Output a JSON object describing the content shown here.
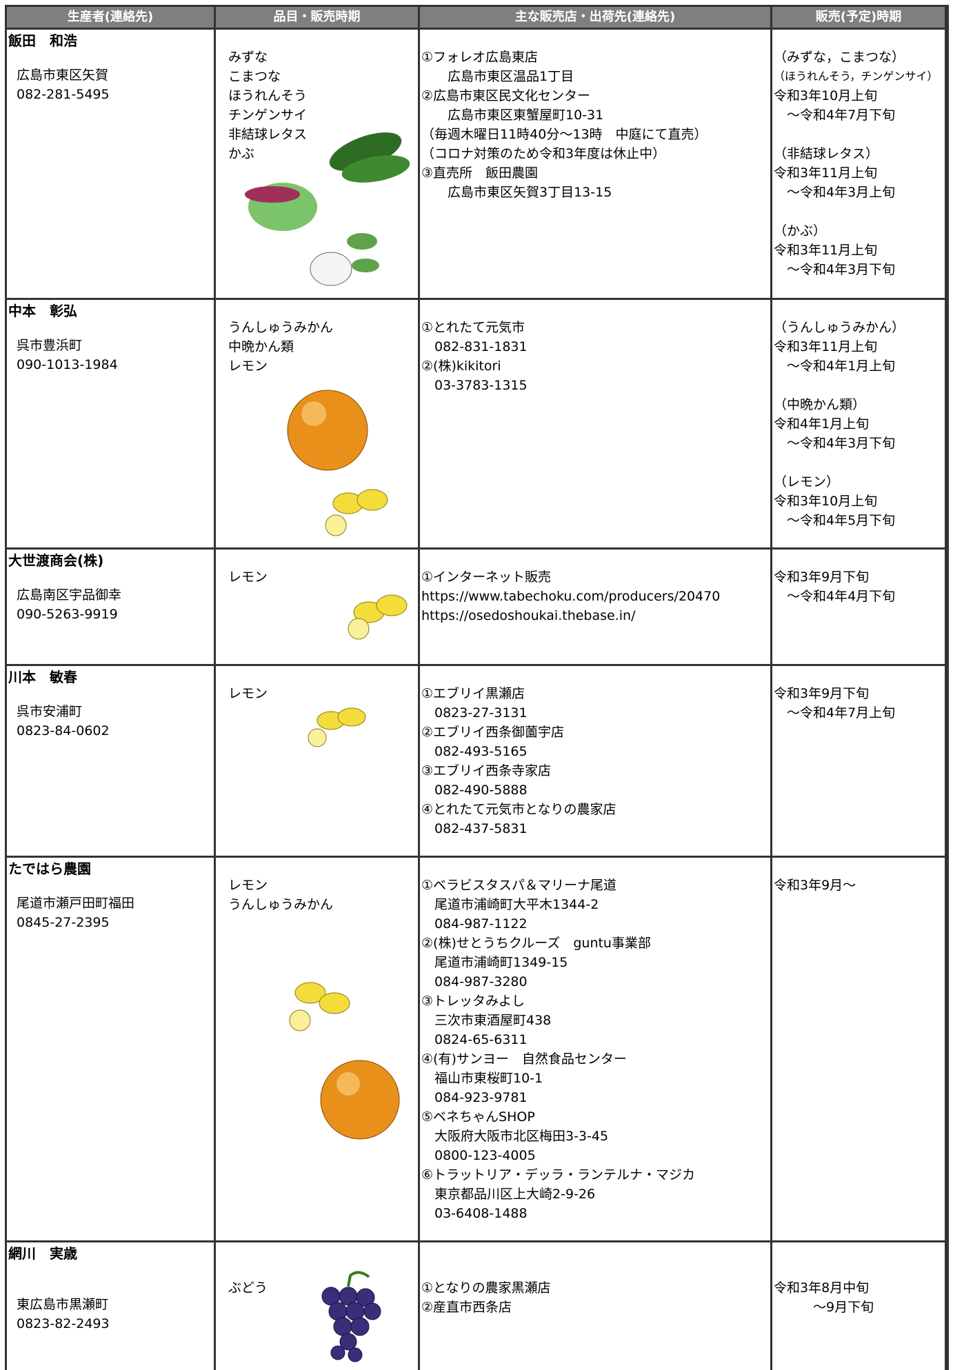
{
  "header": {
    "columns": [
      "生産者(連絡先)",
      "品目・販売時期",
      "主な販売店・出荷先(連絡先)",
      "販売(予定)時期"
    ]
  },
  "rows": [
    {
      "name": "飯田　和浩",
      "address": "広島市東区矢賀",
      "phone": "082-281-5495",
      "items": [
        "みずな",
        "こまつな",
        "ほうれんそう",
        "チンゲンサイ",
        "非結球レタス",
        "かぶ"
      ],
      "shops": [
        "①フォレオ広島東店",
        "　　広島市東区温品1丁目",
        "②広島市東区民文化センター",
        "　　広島市東区東蟹屋町10-31",
        "（毎週木曜日11時40分～13時　中庭にて直売）",
        "（コロナ対策のため令和3年度は休止中）",
        "③直売所　飯田農園",
        "　　広島市東区矢賀3丁目13-15"
      ],
      "periods": [
        [
          "（みずな，こまつな）",
          "（ほうれんそう，チンゲンサイ）",
          "令和3年10月上旬",
          "　～令和4年7月下旬"
        ],
        [
          "（非結球レタス）",
          "令和3年11月上旬",
          "　～令和4年3月上旬"
        ],
        [
          "（かぶ）",
          "令和3年11月上旬",
          "　～令和4年3月下旬"
        ]
      ]
    },
    {
      "name": "中本　彰弘",
      "address": "呉市豊浜町",
      "phone": "090-1013-1984",
      "items": [
        "うんしゅうみかん",
        "中晩かん類",
        "レモン"
      ],
      "shops": [
        "①とれたて元気市",
        "　082-831-1831",
        "②(株)kikitori",
        "　03-3783-1315"
      ],
      "periods": [
        [
          "（うんしゅうみかん）",
          "令和3年11月上旬",
          "　～令和4年1月上旬"
        ],
        [
          "（中晩かん類）",
          "令和4年1月上旬",
          "　～令和4年3月下旬"
        ],
        [
          "（レモン）",
          "令和3年10月上旬",
          "　～令和4年5月下旬"
        ]
      ]
    },
    {
      "name": "大世渡商会(株)",
      "address": "広島南区宇品御幸",
      "phone": "090-5263-9919",
      "items": [
        "レモン"
      ],
      "shops": [
        "①インターネット販売",
        "https://www.tabechoku.com/producers/20470",
        "https://osedoshoukai.thebase.in/"
      ],
      "periods": [
        [
          "令和3年9月下旬",
          "　～令和4年4月下旬"
        ]
      ]
    },
    {
      "name": "川本　敏春",
      "address": "呉市安浦町",
      "phone": "0823-84-0602",
      "items": [
        "レモン"
      ],
      "shops": [
        "①エブリイ黒瀬店",
        "　0823-27-3131",
        "②エブリイ西条御薗宇店",
        "　082-493-5165",
        "③エブリイ西条寺家店",
        "　082-490-5888",
        "④とれたて元気市となりの農家店",
        "　082-437-5831"
      ],
      "periods": [
        [
          "令和3年9月下旬",
          "　～令和4年7月上旬"
        ]
      ]
    },
    {
      "name": "たではら農園",
      "address": "尾道市瀬戸田町福田",
      "phone": "0845-27-2395",
      "items": [
        "レモン",
        "うんしゅうみかん"
      ],
      "shops": [
        "①ベラビスタスパ＆マリーナ尾道",
        "　尾道市浦崎町大平木1344-2",
        "　084-987-1122",
        "②(株)せとうちクルーズ　guntu事業部",
        "　尾道市浦崎町1349-15",
        "　084-987-3280",
        "③トレッタみよし",
        "　三次市東酒屋町438",
        "　0824-65-6311",
        "④(有)サンヨー　自然食品センター",
        "　福山市東桜町10-1",
        "　084-923-9781",
        "⑤ベネちゃんSHOP",
        "　大阪府大阪市北区梅田3-3-45",
        "　0800-123-4005",
        "⑥トラットリア・デッラ・ランテルナ・マジカ",
        "　東京都品川区上大崎2-9-26",
        "　03-6408-1488"
      ],
      "periods": [
        [
          "令和3年9月～"
        ]
      ]
    },
    {
      "name": "網川　実歳",
      "address": "東広島市黒瀬町",
      "phone": "0823-82-2493",
      "items": [
        "ぶどう"
      ],
      "shops": [
        "①となりの農家黒瀬店",
        "②産直市西条店"
      ],
      "periods": [
        [
          "令和3年8月中旬",
          "　　　～9月下旬"
        ]
      ]
    }
  ]
}
